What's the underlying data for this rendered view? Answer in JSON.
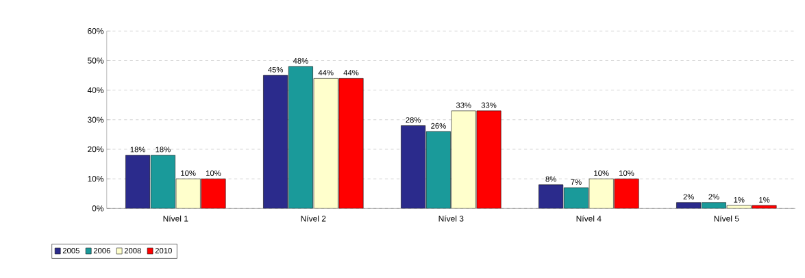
{
  "chart_data": {
    "type": "bar",
    "categories": [
      "Nível 1",
      "Nível 2",
      "Nível 3",
      "Nível 4",
      "Nível 5"
    ],
    "series": [
      {
        "name": "2005",
        "color": "#2b2b8c",
        "values": [
          18,
          45,
          28,
          8,
          2
        ],
        "value_labels": [
          "18%",
          "45%",
          "28%",
          "8%",
          "2%"
        ]
      },
      {
        "name": "2006",
        "color": "#1a9a9a",
        "values": [
          18,
          48,
          26,
          7,
          2
        ],
        "value_labels": [
          "18%",
          "48%",
          "26%",
          "7%",
          "2%"
        ]
      },
      {
        "name": "2008",
        "color": "#ffffcc",
        "values": [
          10,
          44,
          33,
          10,
          1
        ],
        "value_labels": [
          "10%",
          "44%",
          "33%",
          "10%",
          "1%"
        ]
      },
      {
        "name": "2010",
        "color": "#ff0000",
        "values": [
          10,
          44,
          33,
          10,
          1
        ],
        "value_labels": [
          "10%",
          "44%",
          "33%",
          "10%",
          "1%"
        ]
      }
    ],
    "ylim": [
      0,
      60
    ],
    "yticks": [
      {
        "value": 0,
        "label": "0%"
      },
      {
        "value": 10,
        "label": "10%"
      },
      {
        "value": 20,
        "label": "20%"
      },
      {
        "value": 30,
        "label": "30%"
      },
      {
        "value": 40,
        "label": "40%"
      },
      {
        "value": 50,
        "label": "50%"
      },
      {
        "value": 60,
        "label": "60%"
      }
    ],
    "grid": "y",
    "legend": "bottom left"
  }
}
